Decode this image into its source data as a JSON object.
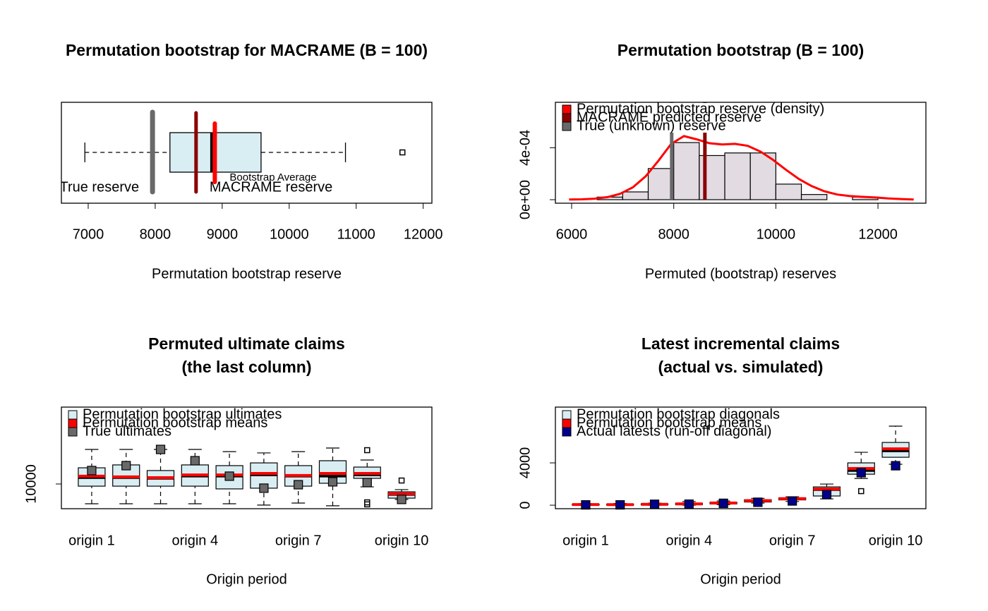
{
  "chart_data": [
    {
      "type": "boxplot",
      "horizontal": true,
      "title": "Permutation bootstrap for MACRAME (B = 100)",
      "xlabel": "Permutation bootstrap reserve",
      "xlim": [
        6600,
        12130
      ],
      "xticks": [
        7000,
        8000,
        9000,
        10000,
        11000,
        12000
      ],
      "box": {
        "whislo": 6950,
        "q1": 8220,
        "med": 8840,
        "q3": 9580,
        "whishi": 10840,
        "outliers": [
          11690
        ]
      },
      "box_color": "#d8eef3",
      "reference_lines": [
        {
          "label": "True reserve",
          "value": 7960,
          "color": "#696969"
        },
        {
          "label": "MACRAME reserve",
          "value": 8610,
          "color": "#8b0000"
        },
        {
          "label": "Bootstrap Average",
          "value": 8890,
          "color": "#ff0000"
        }
      ]
    },
    {
      "type": "histogram",
      "title": "Permutation bootstrap (B = 100)",
      "xlabel": "Permuted (bootstrap) reserves",
      "xlim": [
        5682,
        12939
      ],
      "xticks": [
        6000,
        8000,
        10000,
        12000
      ],
      "ylim": [
        -2.7e-05,
        0.00075
      ],
      "yticks": [
        {
          "value": 0,
          "label": "0e+00"
        },
        {
          "value": 0.0004,
          "label": "4e-04"
        }
      ],
      "bins": [
        6500,
        7000,
        7500,
        8000,
        8500,
        9000,
        9500,
        10000,
        10500,
        11000,
        11500,
        12000
      ],
      "values": [
        2e-05,
        6e-05,
        0.00024,
        0.00044,
        0.00034,
        0.00036,
        0.00036,
        0.00012,
        4e-05,
        0,
        2e-05
      ],
      "color": "#e2dbe2",
      "density": {
        "name": "Permutation bootstrap reserve (density)",
        "color": "#ff0000",
        "x": [
          5950,
          6200,
          6450,
          6700,
          6950,
          7200,
          7450,
          7700,
          7950,
          8200,
          8450,
          8700,
          8950,
          9200,
          9450,
          9700,
          9950,
          10200,
          10450,
          10700,
          10950,
          11200,
          11450,
          11700,
          11950,
          12200,
          12450,
          12700
        ],
        "y": [
          1e-06,
          3e-06,
          8e-06,
          2e-05,
          4.5e-05,
          9.5e-05,
          0.00018,
          0.0003,
          0.00043,
          0.00049,
          0.000465,
          0.000435,
          0.000425,
          0.00043,
          0.000415,
          0.00037,
          0.000305,
          0.00023,
          0.00016,
          0.000105,
          6.5e-05,
          4e-05,
          2.8e-05,
          2.2e-05,
          1.7e-05,
          1e-05,
          5e-06,
          2e-06
        ]
      },
      "reference_lines": [
        {
          "name": "MACRAME predicted reserve",
          "value": 8610,
          "color": "#8b0000"
        },
        {
          "name": "True (unknown) reserve",
          "value": 7960,
          "color": "#696969"
        }
      ],
      "legend": "topleft"
    },
    {
      "type": "boxplot",
      "title": [
        "Permuted ultimate claims",
        "(the last column)"
      ],
      "xlabel": "Origin period",
      "categories": [
        "origin 1",
        null,
        null,
        "origin 4",
        null,
        null,
        "origin 7",
        null,
        null,
        "origin 10"
      ],
      "ylim": [
        8290,
        15320
      ],
      "yticks": [
        10000
      ],
      "box_name": "Permutation bootstrap ultimates",
      "box_color": "#d8eef3",
      "boxes": [
        {
          "whislo": 8630,
          "q1": 9850,
          "med": 10440,
          "q3": 11120,
          "whishi": 12390,
          "outliers": []
        },
        {
          "whislo": 8630,
          "q1": 9850,
          "med": 10440,
          "q3": 11320,
          "whishi": 12390,
          "outliers": []
        },
        {
          "whislo": 8630,
          "q1": 9850,
          "med": 10390,
          "q3": 10930,
          "whishi": 12390,
          "outliers": []
        },
        {
          "whislo": 8630,
          "q1": 9850,
          "med": 10540,
          "q3": 11320,
          "whishi": 12390,
          "outliers": []
        },
        {
          "whislo": 8630,
          "q1": 9660,
          "med": 10540,
          "q3": 11270,
          "whishi": 12240,
          "outliers": []
        },
        {
          "whislo": 8540,
          "q1": 9710,
          "med": 10630,
          "q3": 11460,
          "whishi": 12150,
          "outliers": []
        },
        {
          "whislo": 8680,
          "q1": 9850,
          "med": 10540,
          "q3": 11270,
          "whishi": 12240,
          "outliers": []
        },
        {
          "whislo": 8490,
          "q1": 10050,
          "med": 10540,
          "q3": 11610,
          "whishi": 12490,
          "outliers": []
        },
        {
          "whislo": 9800,
          "q1": 10390,
          "med": 10630,
          "q3": 11170,
          "whishi": 11660,
          "outliers": [
            12340,
            8730,
            8590
          ]
        },
        {
          "whislo": 8930,
          "q1": 9020,
          "med": 9270,
          "q3": 9460,
          "whishi": 9610,
          "outliers": [
            10240
          ]
        }
      ],
      "series": [
        {
          "name": "Permutation bootstrap means",
          "color": "#ff0000",
          "marker": "line",
          "values": [
            10540,
            10490,
            10440,
            10630,
            10630,
            10730,
            10590,
            10730,
            10730,
            9320
          ]
        },
        {
          "name": "True ultimates",
          "color": "#696969",
          "marker": "square",
          "values": [
            10930,
            11270,
            12390,
            11610,
            10540,
            9710,
            9950,
            10150,
            10100,
            8930
          ]
        }
      ],
      "legend": "topleft"
    },
    {
      "type": "boxplot",
      "title": [
        "Latest incremental claims",
        "(actual vs. simulated)"
      ],
      "xlabel": "Origin period",
      "categories": [
        "origin 1",
        null,
        null,
        "origin 4",
        null,
        null,
        "origin 7",
        null,
        null,
        "origin 10"
      ],
      "ylim": [
        -330,
        9270
      ],
      "yticks": [
        0,
        4000
      ],
      "box_name": "Permutation bootstrap diagonals",
      "box_color": "#d8eef3",
      "boxes": [
        {
          "whislo": -20,
          "q1": 10,
          "med": 50,
          "q3": 100,
          "whishi": 150,
          "outliers": []
        },
        {
          "whislo": -20,
          "q1": 10,
          "med": 50,
          "q3": 100,
          "whishi": 160,
          "outliers": []
        },
        {
          "whislo": 0,
          "q1": 40,
          "med": 80,
          "q3": 130,
          "whishi": 200,
          "outliers": []
        },
        {
          "whislo": 0,
          "q1": 60,
          "med": 110,
          "q3": 180,
          "whishi": 350,
          "outliers": []
        },
        {
          "whislo": 50,
          "q1": 120,
          "med": 200,
          "q3": 280,
          "whishi": 400,
          "outliers": []
        },
        {
          "whislo": 200,
          "q1": 300,
          "med": 420,
          "q3": 520,
          "whishi": 650,
          "outliers": []
        },
        {
          "whislo": 350,
          "q1": 500,
          "med": 620,
          "q3": 700,
          "whishi": 800,
          "outliers": []
        },
        {
          "whislo": 600,
          "q1": 870,
          "med": 1470,
          "q3": 1730,
          "whishi": 2000,
          "outliers": []
        },
        {
          "whislo": 2530,
          "q1": 2930,
          "med": 3270,
          "q3": 4000,
          "whishi": 5000,
          "outliers": [
            1330
          ]
        },
        {
          "whislo": 3870,
          "q1": 4530,
          "med": 5130,
          "q3": 5930,
          "whishi": 7470,
          "outliers": []
        }
      ],
      "series": [
        {
          "name": "Permutation bootstrap means",
          "color": "#ff0000",
          "marker": "line",
          "values": [
            60,
            55,
            90,
            130,
            210,
            430,
            620,
            1530,
            3470,
            5330
          ]
        },
        {
          "name": "Actual latests (run-off diagonal)",
          "color": "#00008b",
          "marker": "square",
          "values": [
            30,
            30,
            90,
            100,
            180,
            280,
            400,
            1000,
            3070,
            3730
          ]
        }
      ],
      "legend": "topleft"
    }
  ]
}
